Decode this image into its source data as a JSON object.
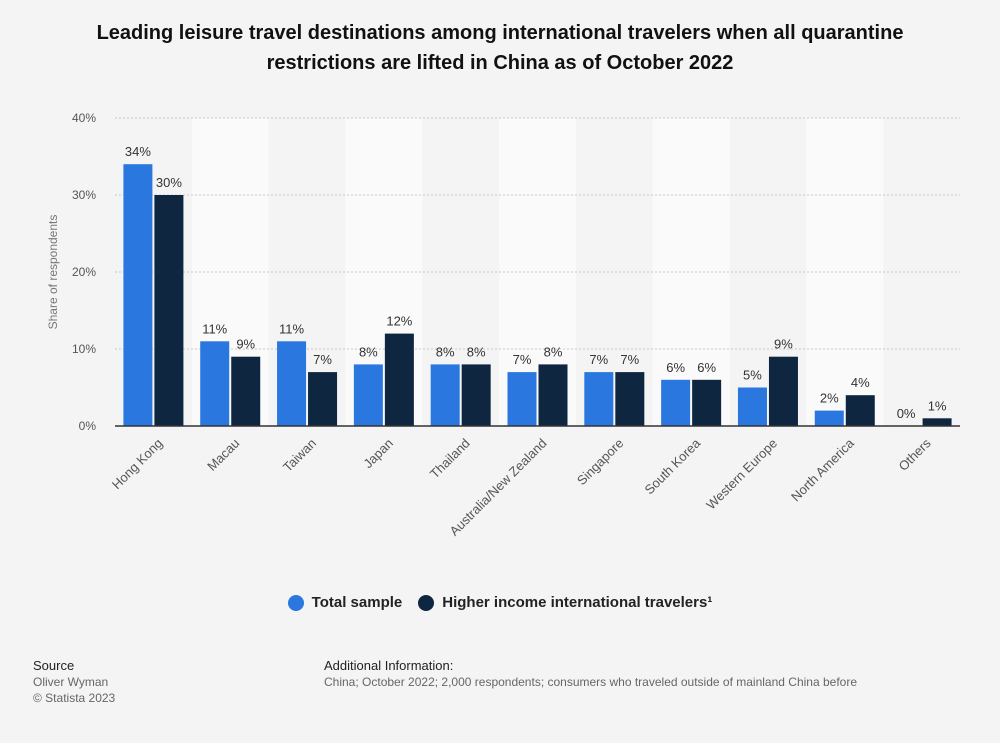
{
  "chart_data": {
    "type": "bar",
    "title": "Leading leisure travel destinations among international travelers when all quarantine restrictions are lifted in China as of October 2022",
    "categories": [
      "Hong Kong",
      "Macau",
      "Taiwan",
      "Japan",
      "Thailand",
      "Australia/New Zealand",
      "Singapore",
      "South Korea",
      "Western Europe",
      "North America",
      "Others"
    ],
    "series": [
      {
        "name": "Total sample",
        "color": "#2a77e0",
        "values": [
          34,
          11,
          11,
          8,
          8,
          7,
          7,
          6,
          5,
          2,
          0
        ]
      },
      {
        "name": "Higher income international travelers¹",
        "color": "#0f2640",
        "values": [
          30,
          9,
          7,
          12,
          8,
          8,
          7,
          6,
          9,
          4,
          1
        ]
      }
    ],
    "ylabel": "Share of respondents",
    "ylim": [
      0,
      40
    ],
    "yticks": [
      0,
      10,
      20,
      30,
      40
    ],
    "value_suffix": "%",
    "grid": true,
    "legend_position": "bottom"
  },
  "footer": {
    "source_label": "Source",
    "source_name": "Oliver Wyman",
    "copyright": "© Statista 2023",
    "info_label": "Additional Information:",
    "info_text": "China; October 2022; 2,000 respondents; consumers who traveled outside of mainland China before"
  }
}
